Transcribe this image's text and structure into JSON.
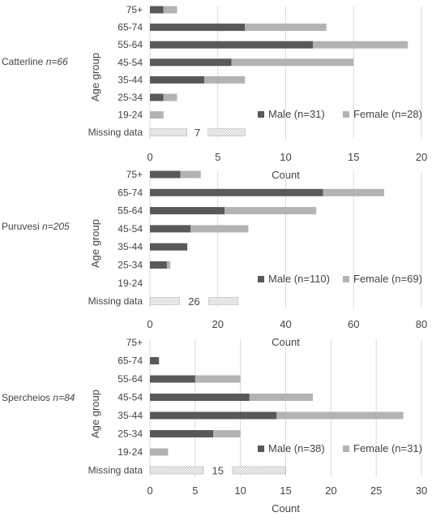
{
  "colors": {
    "male": "#595959",
    "female": "#b3b3b3",
    "grid": "#d9d9d9",
    "missing_fill": "dotted-light"
  },
  "chart_data": [
    {
      "type": "bar",
      "orientation": "horizontal",
      "stacked": true,
      "site_name": "Catterline",
      "site_n": "n=66",
      "ylabel": "Age group",
      "xlabel": "Count",
      "categories": [
        "75+",
        "65-74",
        "55-64",
        "45-54",
        "35-44",
        "25-34",
        "19-24",
        "Missing data"
      ],
      "series": [
        {
          "name": "Male (n=31)",
          "values": [
            1,
            7,
            12,
            6,
            4,
            1,
            0,
            0
          ]
        },
        {
          "name": "Female (n=28)",
          "values": [
            1,
            6,
            7,
            9,
            3,
            1,
            1,
            0
          ]
        }
      ],
      "missing": {
        "value": 7,
        "label": "7"
      },
      "xlim": [
        0,
        20
      ],
      "xticks": [
        "0",
        "5",
        "10",
        "15",
        "20"
      ],
      "grid": true,
      "legend": "bottom-right"
    },
    {
      "type": "bar",
      "orientation": "horizontal",
      "stacked": true,
      "site_name": "Puruvesi",
      "site_n": "n=205",
      "ylabel": "Age group",
      "xlabel": "Count",
      "categories": [
        "75+",
        "65-74",
        "55-64",
        "45-54",
        "35-44",
        "25-34",
        "19-24",
        "Missing data"
      ],
      "series": [
        {
          "name": "Male (n=110)",
          "values": [
            9,
            51,
            22,
            12,
            11,
            5,
            0,
            0
          ]
        },
        {
          "name": "Female (n=69)",
          "values": [
            6,
            18,
            27,
            17,
            0,
            1,
            0,
            0
          ]
        }
      ],
      "missing": {
        "value": 26,
        "label": "26"
      },
      "xlim": [
        0,
        80
      ],
      "xticks": [
        "0",
        "20",
        "40",
        "60",
        "80"
      ],
      "grid": true,
      "legend": "bottom-right"
    },
    {
      "type": "bar",
      "orientation": "horizontal",
      "stacked": true,
      "site_name": "Spercheios",
      "site_n": "n=84",
      "ylabel": "Age group",
      "xlabel": "Count",
      "categories": [
        "75+",
        "65-74",
        "55-64",
        "45-54",
        "35-44",
        "25-34",
        "19-24",
        "Missing data"
      ],
      "series": [
        {
          "name": "Male (n=38)",
          "values": [
            0,
            1,
            5,
            11,
            14,
            7,
            0,
            0
          ]
        },
        {
          "name": "Female (n=31)",
          "values": [
            0,
            0,
            5,
            7,
            14,
            3,
            2,
            0
          ]
        }
      ],
      "missing": {
        "value": 15,
        "label": "15"
      },
      "xlim": [
        0,
        30
      ],
      "xticks": [
        "0",
        "5",
        "10",
        "15",
        "20",
        "25",
        "30"
      ],
      "grid": true,
      "legend": "bottom-right"
    }
  ]
}
